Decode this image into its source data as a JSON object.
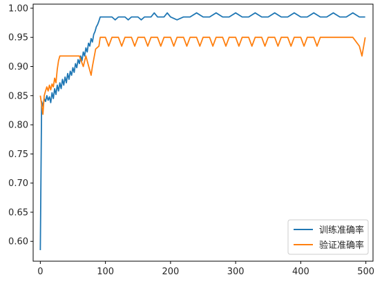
{
  "chart_data": {
    "type": "line",
    "title": "",
    "xlabel": "",
    "ylabel": "",
    "xlim": [
      -11,
      511
    ],
    "ylim": [
      0.566,
      1.007
    ],
    "x_ticks": [
      0,
      100,
      200,
      300,
      400,
      500
    ],
    "y_ticks": [
      0.6,
      0.65,
      0.7,
      0.75,
      0.8,
      0.85,
      0.9,
      0.95,
      1.0
    ],
    "x_tick_labels": [
      "0",
      "100",
      "200",
      "300",
      "400",
      "500"
    ],
    "y_tick_labels": [
      "0.60",
      "0.65",
      "0.70",
      "0.75",
      "0.80",
      "0.85",
      "0.90",
      "0.95",
      "1.00"
    ],
    "grid": false,
    "legend_position": "lower-right",
    "series": [
      {
        "name": "训练准确率",
        "color": "#1f77b4",
        "points": [
          [
            0,
            0.585
          ],
          [
            2,
            0.84
          ],
          [
            4,
            0.832
          ],
          [
            6,
            0.845
          ],
          [
            8,
            0.84
          ],
          [
            10,
            0.85
          ],
          [
            12,
            0.842
          ],
          [
            14,
            0.848
          ],
          [
            16,
            0.838
          ],
          [
            18,
            0.855
          ],
          [
            20,
            0.845
          ],
          [
            22,
            0.862
          ],
          [
            24,
            0.852
          ],
          [
            26,
            0.868
          ],
          [
            28,
            0.858
          ],
          [
            30,
            0.872
          ],
          [
            32,
            0.862
          ],
          [
            34,
            0.878
          ],
          [
            36,
            0.868
          ],
          [
            38,
            0.882
          ],
          [
            40,
            0.872
          ],
          [
            42,
            0.888
          ],
          [
            44,
            0.878
          ],
          [
            46,
            0.892
          ],
          [
            48,
            0.885
          ],
          [
            50,
            0.898
          ],
          [
            52,
            0.89
          ],
          [
            54,
            0.905
          ],
          [
            56,
            0.898
          ],
          [
            58,
            0.912
          ],
          [
            60,
            0.905
          ],
          [
            62,
            0.918
          ],
          [
            64,
            0.91
          ],
          [
            66,
            0.925
          ],
          [
            68,
            0.918
          ],
          [
            70,
            0.932
          ],
          [
            72,
            0.925
          ],
          [
            74,
            0.94
          ],
          [
            76,
            0.935
          ],
          [
            78,
            0.948
          ],
          [
            80,
            0.942
          ],
          [
            82,
            0.955
          ],
          [
            84,
            0.96
          ],
          [
            86,
            0.968
          ],
          [
            88,
            0.972
          ],
          [
            90,
            0.978
          ],
          [
            92,
            0.985
          ],
          [
            100,
            0.985
          ],
          [
            110,
            0.985
          ],
          [
            115,
            0.98
          ],
          [
            120,
            0.985
          ],
          [
            130,
            0.985
          ],
          [
            135,
            0.98
          ],
          [
            140,
            0.985
          ],
          [
            150,
            0.985
          ],
          [
            155,
            0.98
          ],
          [
            160,
            0.985
          ],
          [
            170,
            0.985
          ],
          [
            175,
            0.992
          ],
          [
            180,
            0.985
          ],
          [
            190,
            0.985
          ],
          [
            195,
            0.992
          ],
          [
            200,
            0.985
          ],
          [
            210,
            0.98
          ],
          [
            220,
            0.985
          ],
          [
            230,
            0.985
          ],
          [
            240,
            0.992
          ],
          [
            250,
            0.985
          ],
          [
            260,
            0.985
          ],
          [
            270,
            0.992
          ],
          [
            280,
            0.985
          ],
          [
            290,
            0.985
          ],
          [
            300,
            0.992
          ],
          [
            310,
            0.985
          ],
          [
            320,
            0.985
          ],
          [
            330,
            0.992
          ],
          [
            340,
            0.985
          ],
          [
            350,
            0.985
          ],
          [
            360,
            0.992
          ],
          [
            370,
            0.985
          ],
          [
            380,
            0.985
          ],
          [
            390,
            0.992
          ],
          [
            400,
            0.985
          ],
          [
            410,
            0.985
          ],
          [
            420,
            0.992
          ],
          [
            430,
            0.985
          ],
          [
            440,
            0.985
          ],
          [
            450,
            0.992
          ],
          [
            460,
            0.985
          ],
          [
            470,
            0.985
          ],
          [
            480,
            0.992
          ],
          [
            490,
            0.985
          ],
          [
            499,
            0.985
          ]
        ]
      },
      {
        "name": "验证准确率",
        "color": "#ff7f0e",
        "points": [
          [
            0,
            0.85
          ],
          [
            2,
            0.835
          ],
          [
            4,
            0.818
          ],
          [
            6,
            0.85
          ],
          [
            8,
            0.858
          ],
          [
            10,
            0.865
          ],
          [
            12,
            0.858
          ],
          [
            14,
            0.868
          ],
          [
            16,
            0.86
          ],
          [
            18,
            0.87
          ],
          [
            20,
            0.865
          ],
          [
            22,
            0.88
          ],
          [
            24,
            0.872
          ],
          [
            26,
            0.895
          ],
          [
            28,
            0.91
          ],
          [
            30,
            0.918
          ],
          [
            40,
            0.918
          ],
          [
            50,
            0.918
          ],
          [
            60,
            0.918
          ],
          [
            66,
            0.9
          ],
          [
            70,
            0.918
          ],
          [
            78,
            0.885
          ],
          [
            80,
            0.9
          ],
          [
            85,
            0.93
          ],
          [
            90,
            0.935
          ],
          [
            92,
            0.95
          ],
          [
            100,
            0.95
          ],
          [
            105,
            0.935
          ],
          [
            110,
            0.95
          ],
          [
            120,
            0.95
          ],
          [
            125,
            0.935
          ],
          [
            130,
            0.95
          ],
          [
            140,
            0.95
          ],
          [
            145,
            0.935
          ],
          [
            150,
            0.95
          ],
          [
            160,
            0.95
          ],
          [
            165,
            0.935
          ],
          [
            170,
            0.95
          ],
          [
            180,
            0.95
          ],
          [
            185,
            0.935
          ],
          [
            190,
            0.95
          ],
          [
            200,
            0.95
          ],
          [
            205,
            0.935
          ],
          [
            210,
            0.95
          ],
          [
            220,
            0.95
          ],
          [
            225,
            0.935
          ],
          [
            230,
            0.95
          ],
          [
            240,
            0.95
          ],
          [
            245,
            0.935
          ],
          [
            250,
            0.95
          ],
          [
            260,
            0.95
          ],
          [
            265,
            0.935
          ],
          [
            270,
            0.95
          ],
          [
            280,
            0.95
          ],
          [
            285,
            0.935
          ],
          [
            290,
            0.95
          ],
          [
            300,
            0.95
          ],
          [
            305,
            0.935
          ],
          [
            310,
            0.95
          ],
          [
            320,
            0.95
          ],
          [
            325,
            0.935
          ],
          [
            330,
            0.95
          ],
          [
            340,
            0.95
          ],
          [
            345,
            0.935
          ],
          [
            350,
            0.95
          ],
          [
            360,
            0.95
          ],
          [
            365,
            0.935
          ],
          [
            370,
            0.95
          ],
          [
            380,
            0.95
          ],
          [
            385,
            0.935
          ],
          [
            390,
            0.95
          ],
          [
            400,
            0.95
          ],
          [
            405,
            0.935
          ],
          [
            410,
            0.95
          ],
          [
            420,
            0.95
          ],
          [
            425,
            0.935
          ],
          [
            430,
            0.95
          ],
          [
            440,
            0.95
          ],
          [
            450,
            0.95
          ],
          [
            460,
            0.95
          ],
          [
            470,
            0.95
          ],
          [
            480,
            0.95
          ],
          [
            490,
            0.935
          ],
          [
            494,
            0.918
          ],
          [
            499,
            0.95
          ]
        ]
      }
    ]
  }
}
